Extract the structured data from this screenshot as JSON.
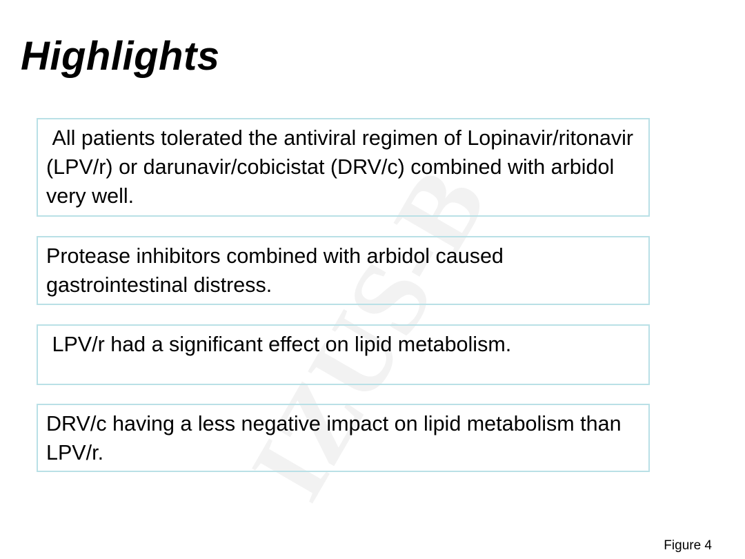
{
  "slide": {
    "title": "Highlights",
    "watermark": "IZUS-B",
    "highlights": [
      {
        "text": " All patients tolerated the antiviral regimen of Lopinavir/ritonavir (LPV/r) or darunavir/cobicistat (DRV/c) combined with arbidol very well."
      },
      {
        "text": "Protease inhibitors combined with arbidol caused gastrointestinal distress."
      },
      {
        "text": " LPV/r had a significant effect on lipid metabolism."
      },
      {
        "text": "DRV/c having a less negative impact on lipid metabolism than LPV/r."
      }
    ],
    "figure_label": "Figure 4",
    "colors": {
      "box_border": "#b9e0e6",
      "watermark": "#f2f2f2"
    }
  }
}
